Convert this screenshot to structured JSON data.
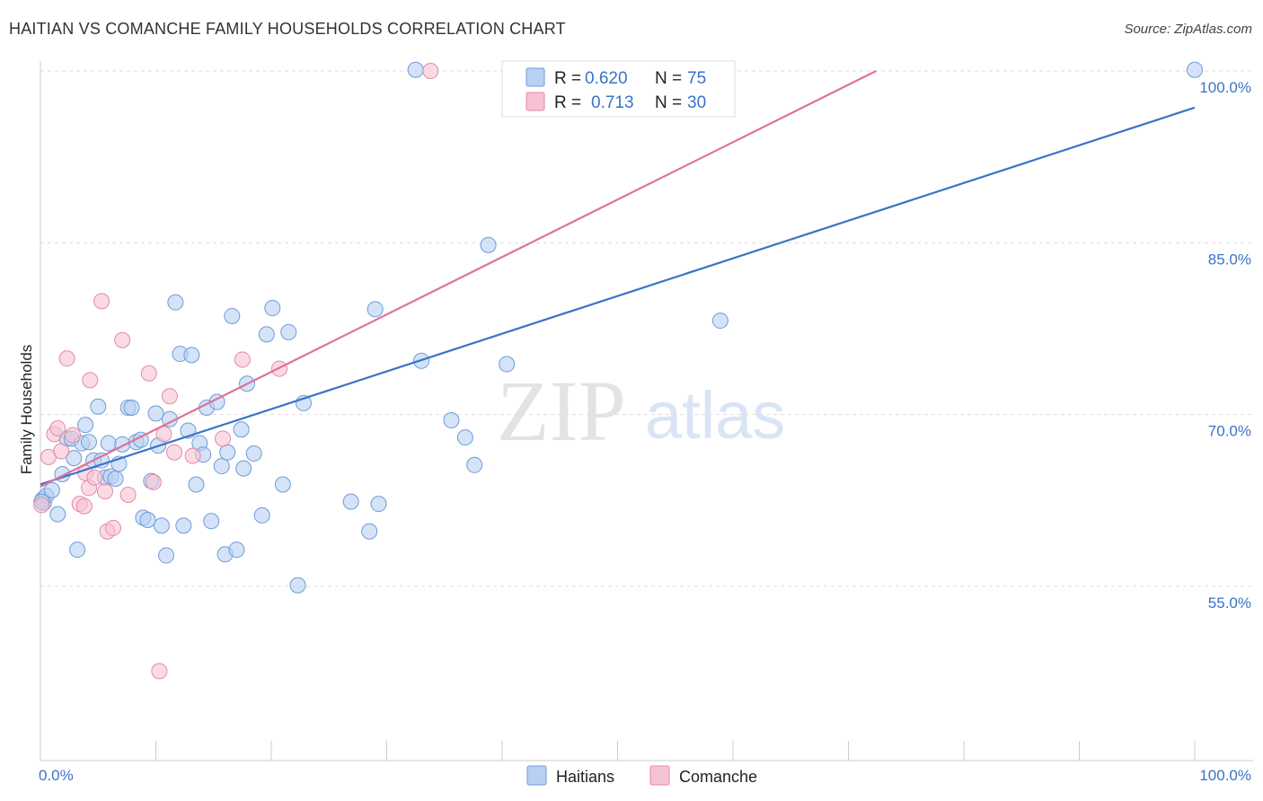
{
  "header": {
    "title": "HAITIAN VS COMANCHE FAMILY HOUSEHOLDS CORRELATION CHART",
    "source": "Source: ZipAtlas.com"
  },
  "watermark": {
    "zip": "ZIP",
    "atlas": "atlas"
  },
  "colors": {
    "blue_fill": "#b8d0f2",
    "blue_stroke": "#6f9bd8",
    "blue_line": "#3a73c8",
    "pink_fill": "#f6c3d2",
    "pink_stroke": "#e48aa6",
    "pink_line": "#e07298",
    "grid": "#dddddd",
    "tick_text": "#3a73c8"
  },
  "legend": {
    "rows": [
      {
        "r_label": "R =",
        "r_value": "0.620",
        "n_label": "N =",
        "n_value": "75"
      },
      {
        "r_label": "R =",
        "r_value": "0.713",
        "n_label": "N =",
        "n_value": "30"
      }
    ]
  },
  "chart_data": {
    "type": "scatter",
    "title": "HAITIAN VS COMANCHE FAMILY HOUSEHOLDS CORRELATION CHART",
    "xlabel": "",
    "ylabel": "Family Households",
    "xlim": [
      0,
      100
    ],
    "ylim": [
      40,
      102
    ],
    "x_tick_labels": [
      "0.0%",
      "100.0%"
    ],
    "y_ticks": [
      55,
      70,
      85,
      100
    ],
    "y_tick_labels": [
      "55.0%",
      "70.0%",
      "85.0%",
      "100.0%"
    ],
    "series": [
      {
        "name": "Haitians",
        "color": "#3a73c8",
        "trend": {
          "x": [
            0,
            100
          ],
          "y": [
            63.9,
            96.8
          ]
        },
        "points": [
          [
            0.2,
            62.6
          ],
          [
            0.3,
            62.3
          ],
          [
            0.5,
            62.9
          ],
          [
            1.0,
            63.4
          ],
          [
            1.5,
            61.3
          ],
          [
            1.9,
            64.8
          ],
          [
            2.3,
            67.9
          ],
          [
            2.7,
            67.9
          ],
          [
            2.9,
            66.2
          ],
          [
            3.2,
            58.2
          ],
          [
            3.6,
            67.5
          ],
          [
            3.9,
            69.1
          ],
          [
            4.2,
            67.6
          ],
          [
            4.6,
            66.0
          ],
          [
            5.0,
            70.7
          ],
          [
            5.3,
            66.0
          ],
          [
            5.6,
            64.5
          ],
          [
            5.9,
            67.5
          ],
          [
            6.1,
            64.6
          ],
          [
            6.5,
            64.4
          ],
          [
            6.8,
            65.7
          ],
          [
            7.1,
            67.4
          ],
          [
            7.6,
            70.6
          ],
          [
            7.9,
            70.6
          ],
          [
            8.3,
            67.6
          ],
          [
            8.7,
            67.8
          ],
          [
            8.9,
            61.0
          ],
          [
            9.3,
            60.8
          ],
          [
            9.6,
            64.2
          ],
          [
            10.0,
            70.1
          ],
          [
            10.2,
            67.3
          ],
          [
            10.5,
            60.3
          ],
          [
            10.9,
            57.7
          ],
          [
            11.2,
            69.6
          ],
          [
            11.7,
            79.8
          ],
          [
            12.1,
            75.3
          ],
          [
            12.4,
            60.3
          ],
          [
            12.8,
            68.6
          ],
          [
            13.1,
            75.2
          ],
          [
            13.5,
            63.9
          ],
          [
            13.8,
            67.5
          ],
          [
            14.1,
            66.5
          ],
          [
            14.4,
            70.6
          ],
          [
            14.8,
            60.7
          ],
          [
            15.3,
            71.1
          ],
          [
            15.7,
            65.5
          ],
          [
            16.0,
            57.8
          ],
          [
            16.2,
            66.7
          ],
          [
            16.6,
            78.6
          ],
          [
            17.0,
            58.2
          ],
          [
            17.4,
            68.7
          ],
          [
            17.6,
            65.3
          ],
          [
            17.9,
            72.7
          ],
          [
            18.5,
            66.6
          ],
          [
            19.2,
            61.2
          ],
          [
            19.6,
            77.0
          ],
          [
            20.1,
            79.3
          ],
          [
            21.0,
            63.9
          ],
          [
            21.5,
            77.2
          ],
          [
            22.3,
            55.1
          ],
          [
            22.8,
            71.0
          ],
          [
            26.9,
            62.4
          ],
          [
            28.5,
            59.8
          ],
          [
            29.0,
            79.2
          ],
          [
            29.3,
            62.2
          ],
          [
            32.5,
            100.1
          ],
          [
            33.0,
            74.7
          ],
          [
            35.6,
            69.5
          ],
          [
            36.8,
            68.0
          ],
          [
            37.6,
            65.6
          ],
          [
            38.8,
            84.8
          ],
          [
            40.4,
            74.4
          ],
          [
            58.9,
            78.2
          ],
          [
            100.0,
            100.1
          ],
          [
            0.1,
            62.4
          ]
        ]
      },
      {
        "name": "Comanche",
        "color": "#e07298",
        "trend": {
          "x": [
            0,
            72.4
          ],
          "y": [
            63.7,
            100.0
          ]
        },
        "points": [
          [
            0.1,
            62.1
          ],
          [
            0.7,
            66.3
          ],
          [
            1.2,
            68.3
          ],
          [
            1.5,
            68.8
          ],
          [
            1.8,
            66.8
          ],
          [
            2.3,
            74.9
          ],
          [
            2.8,
            68.2
          ],
          [
            3.4,
            62.2
          ],
          [
            3.8,
            62.0
          ],
          [
            3.9,
            64.9
          ],
          [
            4.2,
            63.6
          ],
          [
            4.3,
            73.0
          ],
          [
            4.7,
            64.5
          ],
          [
            5.3,
            79.9
          ],
          [
            5.6,
            63.3
          ],
          [
            5.8,
            59.8
          ],
          [
            6.3,
            60.1
          ],
          [
            7.1,
            76.5
          ],
          [
            7.6,
            63.0
          ],
          [
            9.4,
            73.6
          ],
          [
            9.8,
            64.1
          ],
          [
            10.3,
            47.6
          ],
          [
            10.7,
            68.3
          ],
          [
            11.2,
            71.6
          ],
          [
            11.6,
            66.7
          ],
          [
            13.2,
            66.4
          ],
          [
            15.8,
            67.9
          ],
          [
            17.5,
            74.8
          ],
          [
            20.7,
            74.0
          ],
          [
            33.8,
            100.0
          ]
        ]
      }
    ]
  }
}
